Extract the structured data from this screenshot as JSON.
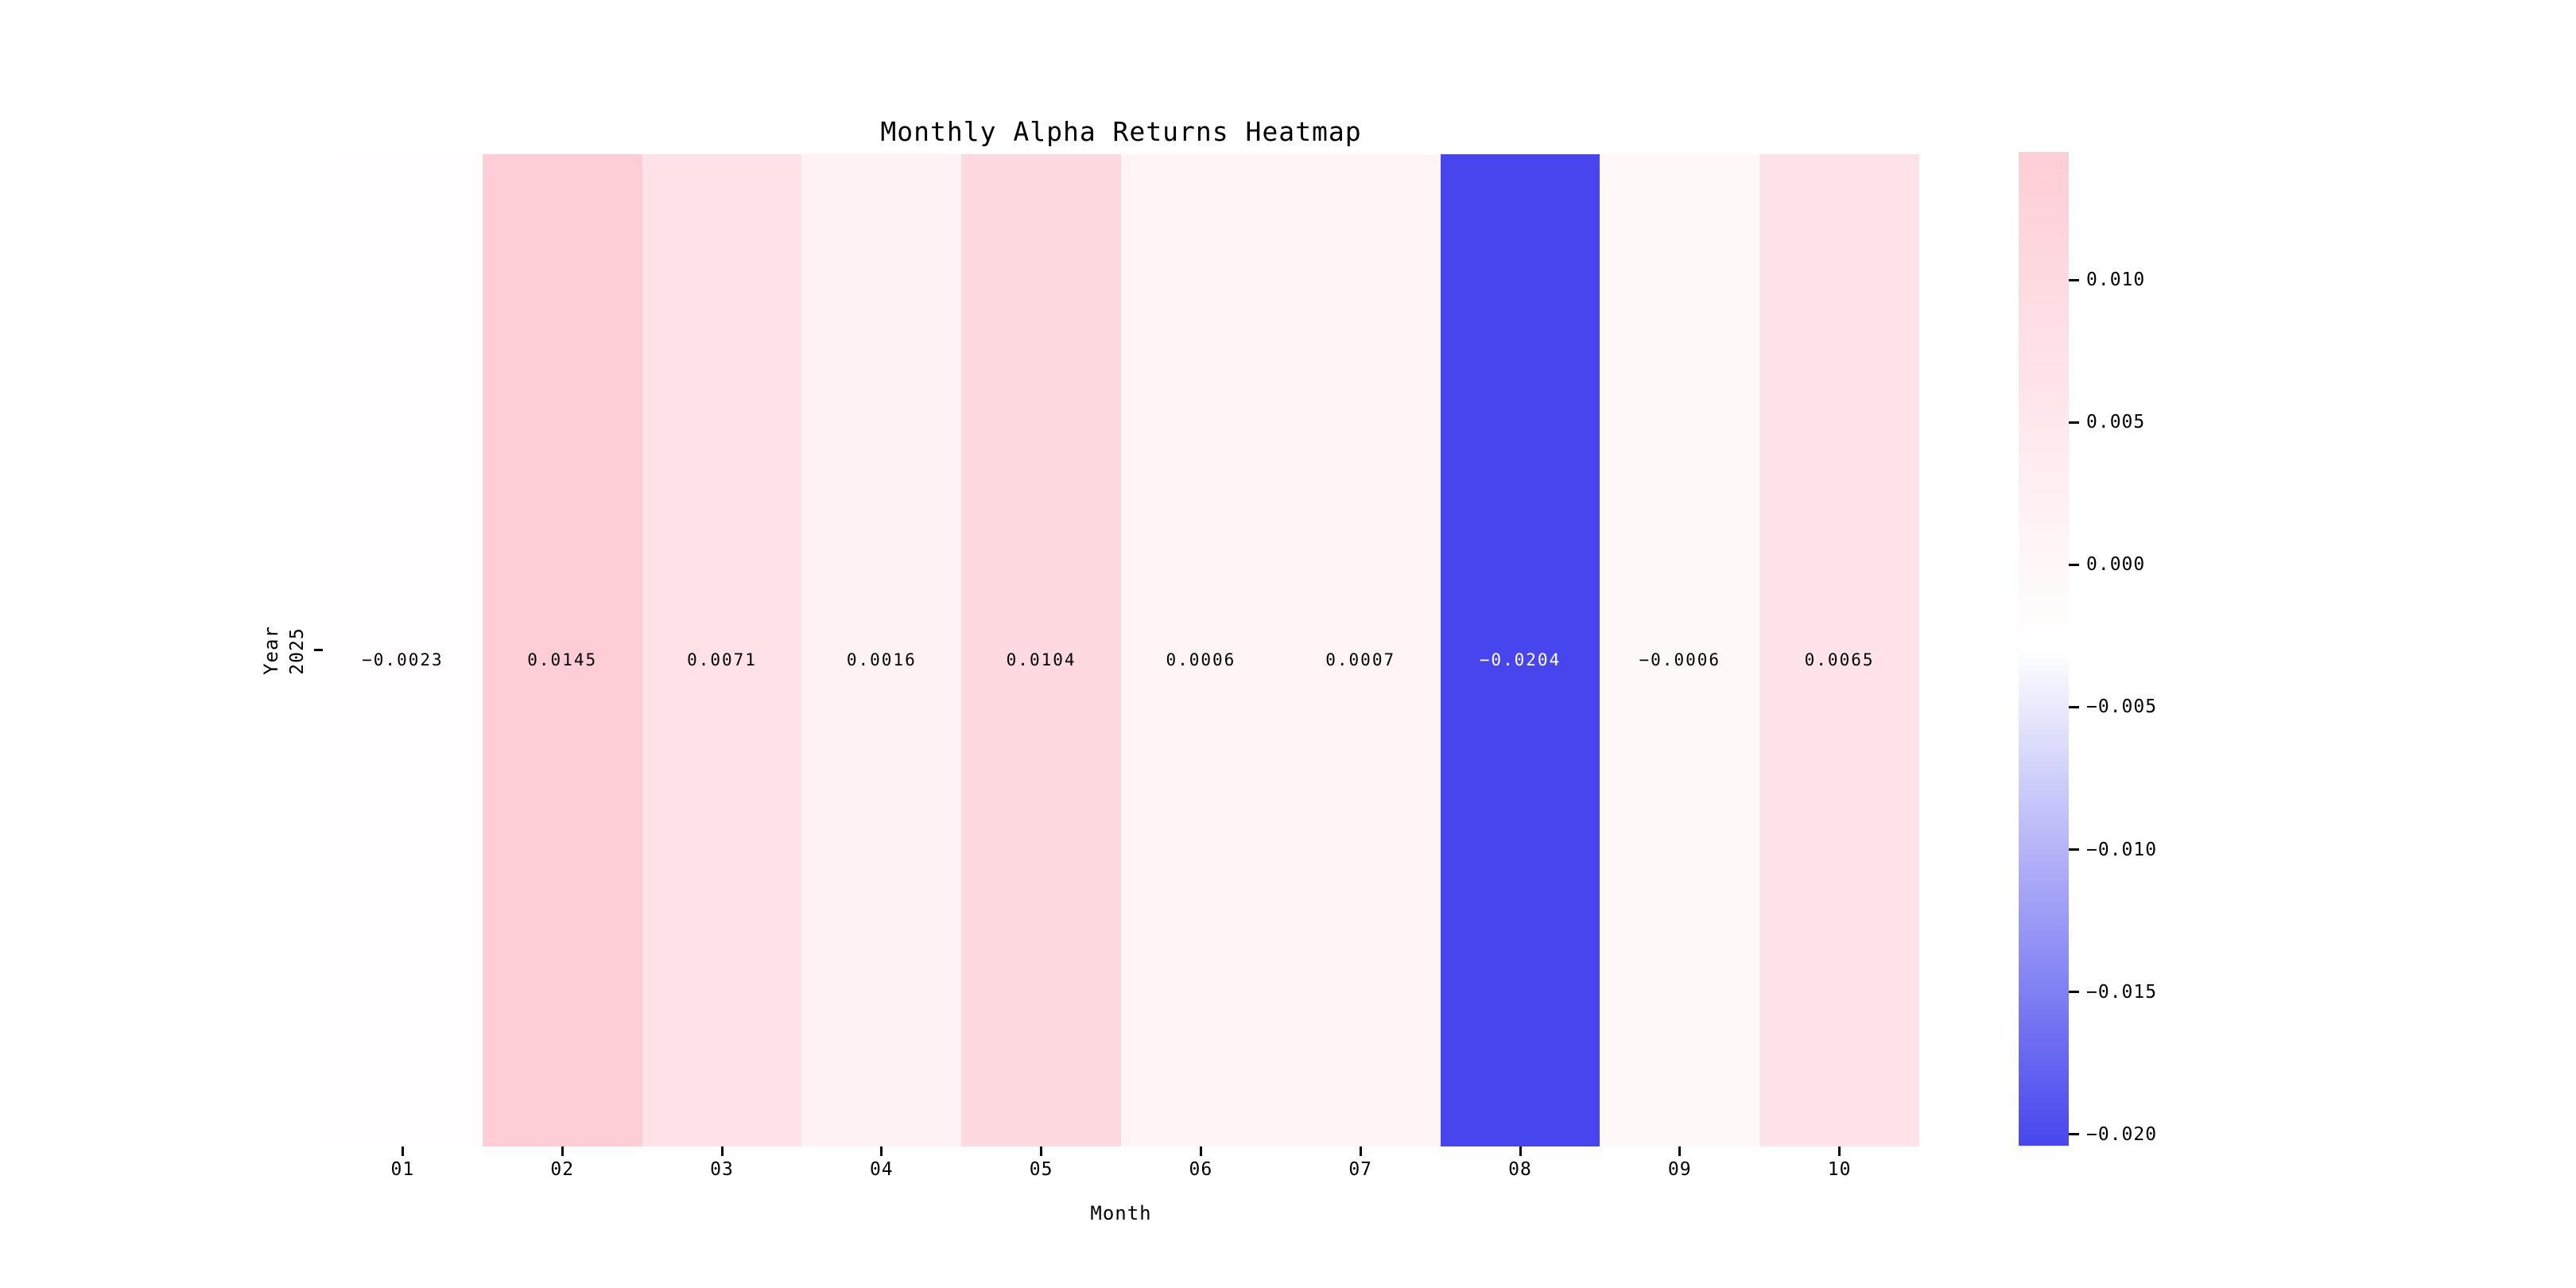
{
  "chart_data": {
    "type": "heatmap",
    "title": "Monthly Alpha Returns Heatmap",
    "xlabel": "Month",
    "ylabel": "Year",
    "x_categories": [
      "01",
      "02",
      "03",
      "04",
      "05",
      "06",
      "07",
      "08",
      "09",
      "10"
    ],
    "y_categories": [
      "2025"
    ],
    "values": [
      [
        -0.0023,
        0.0145,
        0.0071,
        0.0016,
        0.0104,
        0.0006,
        0.0007,
        -0.0204,
        -0.0006,
        0.0065
      ]
    ],
    "cell_labels": [
      [
        "−0.0023",
        "0.0145",
        "0.0071",
        "0.0016",
        "0.0104",
        "0.0006",
        "0.0007",
        "−0.0204",
        "−0.0006",
        "0.0065"
      ]
    ],
    "grid": false,
    "legend_position": "right",
    "colorbar": {
      "vmin": -0.0204,
      "vmax": 0.0145,
      "tick_values": [
        0.01,
        0.005,
        0.0,
        -0.005,
        -0.01,
        -0.015,
        -0.02
      ],
      "tick_labels": [
        "0.010",
        "0.005",
        "0.000",
        "−0.005",
        "−0.010",
        "−0.015",
        "−0.020"
      ],
      "color_max": "#fecdd6",
      "color_mid": "#ffffff",
      "color_min": "#4746ee"
    },
    "colors": {
      "background": "#ffffff",
      "text": "#000000",
      "annot_light_text": "#ffffff"
    }
  }
}
